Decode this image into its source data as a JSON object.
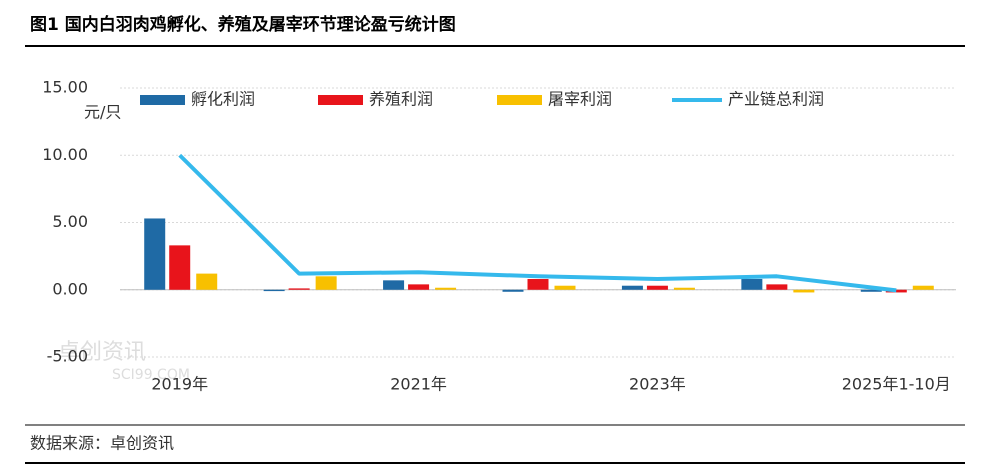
{
  "chart_data": {
    "type": "bar_line",
    "title": "图1 国内白羽肉鸡孵化、养殖及屠宰环节理论盈亏统计图",
    "y_label": "元/只",
    "source": "数据来源：卓创资讯",
    "watermark": {
      "name": "卓创资讯",
      "site": "SCI99.COM"
    },
    "categories": [
      "2019年",
      null,
      "2021年",
      null,
      "2023年",
      null,
      "2025年1-10月"
    ],
    "series": [
      {
        "name": "孵化利润",
        "type": "bar",
        "color": "#1f6aa5",
        "values": [
          5.3,
          -0.1,
          0.7,
          -0.15,
          0.3,
          0.8,
          -0.15
        ]
      },
      {
        "name": "养殖利润",
        "type": "bar",
        "color": "#e8141b",
        "values": [
          3.3,
          0.1,
          0.4,
          0.8,
          0.3,
          0.4,
          -0.2
        ]
      },
      {
        "name": "屠宰利润",
        "type": "bar",
        "color": "#f8c000",
        "values": [
          1.2,
          1.0,
          0.15,
          0.3,
          0.15,
          -0.2,
          0.3
        ]
      },
      {
        "name": "产业链总利润",
        "type": "line",
        "color": "#35b9ec",
        "values": [
          10.0,
          1.2,
          1.3,
          1.0,
          0.8,
          1.0,
          -0.05
        ]
      }
    ],
    "ylim": [
      -5,
      15
    ],
    "yticks": [
      {
        "value": -5,
        "label": "-5.00"
      },
      {
        "value": 0,
        "label": "0.00"
      },
      {
        "value": 5,
        "label": "5.00"
      },
      {
        "value": 10,
        "label": "10.00"
      },
      {
        "value": 15,
        "label": "15.00"
      }
    ],
    "grid": true
  }
}
